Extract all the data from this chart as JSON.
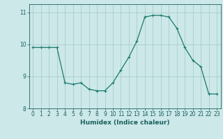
{
  "x": [
    0,
    1,
    2,
    3,
    4,
    5,
    6,
    7,
    8,
    9,
    10,
    11,
    12,
    13,
    14,
    15,
    16,
    17,
    18,
    19,
    20,
    21,
    22,
    23
  ],
  "y": [
    9.9,
    9.9,
    9.9,
    9.9,
    8.8,
    8.75,
    8.8,
    8.6,
    8.55,
    8.55,
    8.8,
    9.2,
    9.6,
    10.1,
    10.85,
    10.9,
    10.9,
    10.85,
    10.5,
    9.9,
    9.5,
    9.3,
    8.45,
    8.45
  ],
  "line_color": "#1a7a6e",
  "marker": "+",
  "marker_size": 3,
  "marker_lw": 0.8,
  "bg_color": "#cce8e8",
  "grid_color": "#aacccc",
  "xlabel": "Humidex (Indice chaleur)",
  "ylim": [
    8.0,
    11.25
  ],
  "xlim": [
    -0.5,
    23.5
  ],
  "yticks": [
    8,
    9,
    10,
    11
  ],
  "xticks": [
    0,
    1,
    2,
    3,
    4,
    5,
    6,
    7,
    8,
    9,
    10,
    11,
    12,
    13,
    14,
    15,
    16,
    17,
    18,
    19,
    20,
    21,
    22,
    23
  ],
  "xtick_labels": [
    "0",
    "1",
    "2",
    "3",
    "4",
    "5",
    "6",
    "7",
    "8",
    "9",
    "10",
    "11",
    "12",
    "13",
    "14",
    "15",
    "16",
    "17",
    "18",
    "19",
    "20",
    "21",
    "22",
    "23"
  ],
  "tick_color": "#1a5f5f",
  "label_fontsize": 6.5,
  "tick_fontsize": 5.5,
  "linewidth": 0.9
}
